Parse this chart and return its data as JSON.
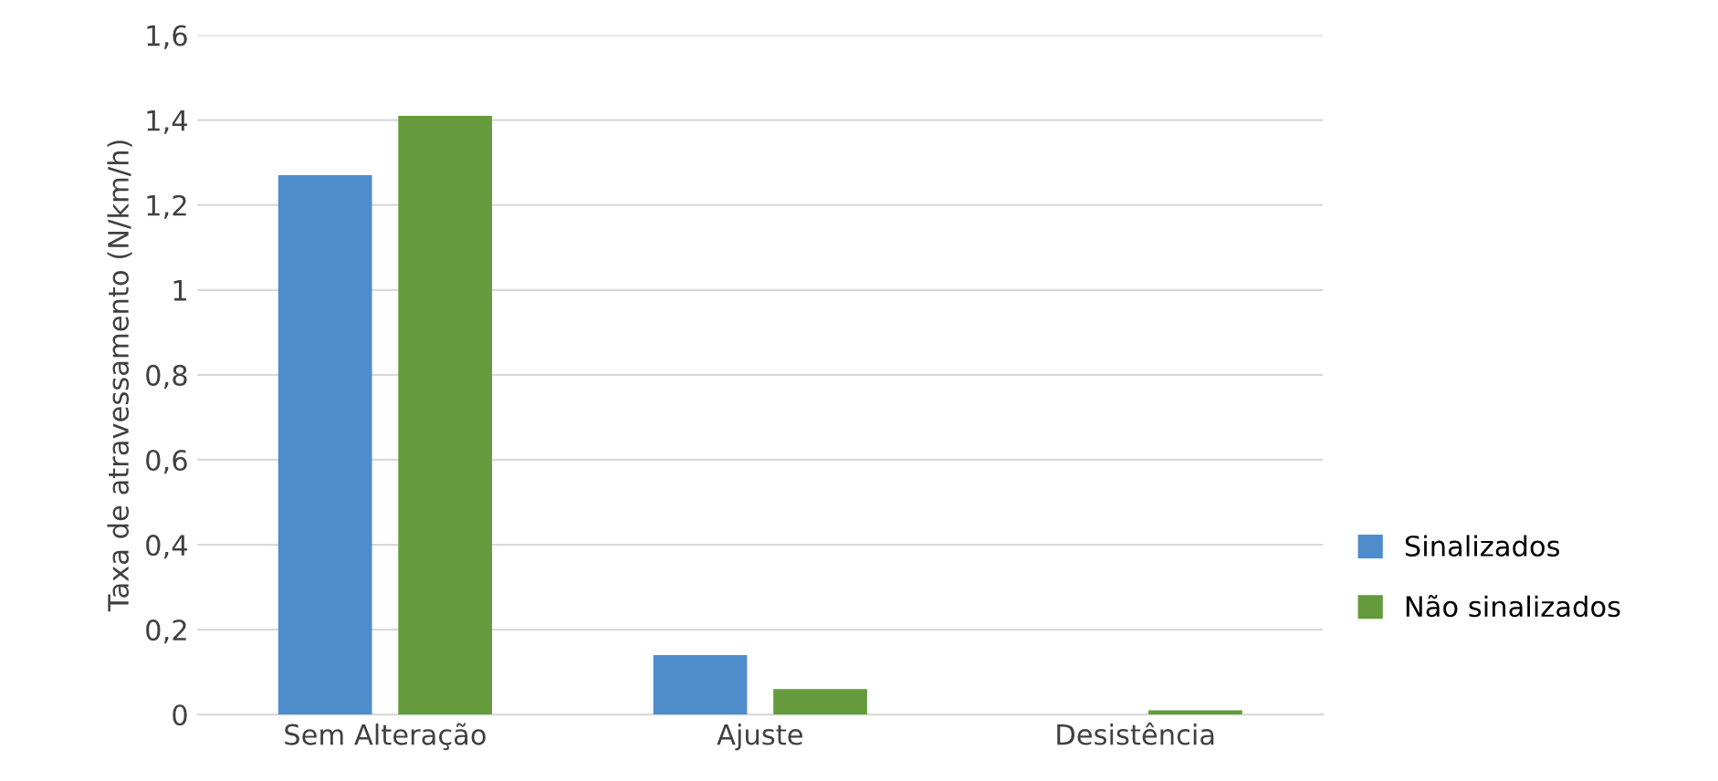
{
  "chart_data": {
    "type": "bar",
    "ylabel": "Taxa de atravessamento (N/km/h)",
    "categories": [
      "Sem Alteração",
      "Ajuste",
      "Desistência"
    ],
    "series": [
      {
        "name": "Sinalizados",
        "color": "#4e8ccc",
        "values": [
          1.27,
          0.14,
          0
        ]
      },
      {
        "name": "Não sinalizados",
        "color": "#659b3c",
        "values": [
          1.41,
          0.06,
          0.01
        ]
      }
    ],
    "ylim": [
      0,
      1.6
    ],
    "yticks": [
      0,
      {
        "value": 0.2,
        "label": "0,2"
      },
      {
        "value": 0.4,
        "label": "0,4"
      },
      {
        "value": 0.6,
        "label": "0,6"
      },
      {
        "value": 0.8,
        "label": "0,8"
      },
      1,
      {
        "value": 1.2,
        "label": "1,2"
      },
      {
        "value": 1.4,
        "label": "1,4"
      },
      {
        "value": 1.6,
        "label": "1,6"
      }
    ],
    "grid": "y",
    "legend": "right"
  }
}
